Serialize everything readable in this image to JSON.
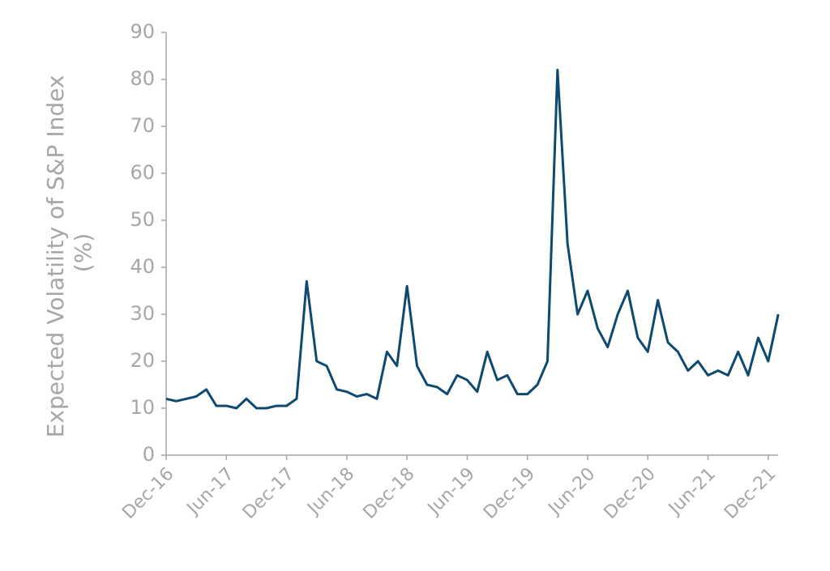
{
  "chart_data": {
    "type": "line",
    "ylabel": [
      "Expected Volatility of S&P Index",
      "(%)"
    ],
    "x": [
      "Dec-16",
      "Jan-17",
      "Feb-17",
      "Mar-17",
      "Apr-17",
      "May-17",
      "Jun-17",
      "Jul-17",
      "Aug-17",
      "Sep-17",
      "Oct-17",
      "Nov-17",
      "Dec-17",
      "Jan-18",
      "Feb-18",
      "Mar-18",
      "Apr-18",
      "May-18",
      "Jun-18",
      "Jul-18",
      "Aug-18",
      "Sep-18",
      "Oct-18",
      "Nov-18",
      "Dec-18",
      "Jan-19",
      "Feb-19",
      "Mar-19",
      "Apr-19",
      "May-19",
      "Jun-19",
      "Jul-19",
      "Aug-19",
      "Sep-19",
      "Oct-19",
      "Nov-19",
      "Dec-19",
      "Jan-20",
      "Feb-20",
      "Mar-20",
      "Apr-20",
      "May-20",
      "Jun-20",
      "Jul-20",
      "Aug-20",
      "Sep-20",
      "Oct-20",
      "Nov-20",
      "Dec-20",
      "Jan-21",
      "Feb-21",
      "Mar-21",
      "Apr-21",
      "May-21",
      "Jun-21",
      "Jul-21",
      "Aug-21",
      "Sep-21",
      "Oct-21",
      "Nov-21",
      "Dec-21",
      "Jan-22"
    ],
    "series": [
      {
        "name": "Expected Volatility",
        "color": "#0e4a70",
        "values": [
          12,
          11.5,
          12,
          12.5,
          14,
          10.5,
          10.5,
          10,
          12,
          10,
          10,
          10.5,
          10.5,
          12,
          37,
          20,
          19,
          14,
          13.5,
          12.5,
          13,
          12,
          22,
          19,
          36,
          19,
          15,
          14.5,
          13,
          17,
          16,
          13.5,
          22,
          16,
          17,
          13,
          13,
          15,
          20,
          82,
          45,
          30,
          35,
          27,
          23,
          30,
          35,
          25,
          22,
          33,
          24,
          22,
          18,
          20,
          17,
          18,
          17,
          22,
          17,
          25,
          20,
          30
        ]
      }
    ],
    "xticks": [
      "Dec-16",
      "Jun-17",
      "Dec-17",
      "Jun-18",
      "Dec-18",
      "Jun-19",
      "Dec-19",
      "Jun-20",
      "Dec-20",
      "Jun-21",
      "Dec-21"
    ],
    "ylim": [
      0,
      90
    ],
    "yticks": [
      0,
      10,
      20,
      30,
      40,
      50,
      60,
      70,
      80,
      90
    ]
  }
}
